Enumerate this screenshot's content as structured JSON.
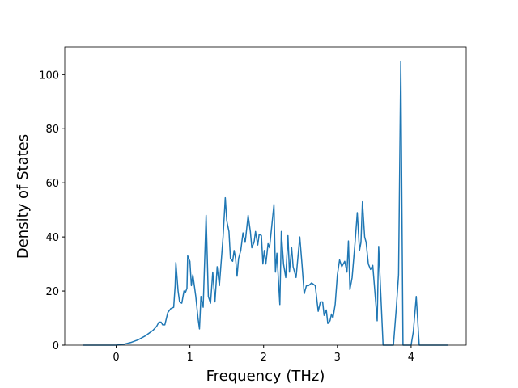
{
  "chart_data": {
    "type": "line",
    "xlabel": "Frequency (THz)",
    "ylabel": "Density of States",
    "x": [
      -0.45,
      -0.2,
      0,
      0.1,
      0.2,
      0.3,
      0.4,
      0.5,
      0.55,
      0.58,
      0.61,
      0.63,
      0.66,
      0.7,
      0.74,
      0.78,
      0.8,
      0.81,
      0.84,
      0.86,
      0.89,
      0.92,
      0.94,
      0.96,
      0.97,
      1.0,
      1.02,
      1.04,
      1.08,
      1.11,
      1.13,
      1.15,
      1.18,
      1.22,
      1.25,
      1.28,
      1.31,
      1.34,
      1.37,
      1.4,
      1.45,
      1.48,
      1.5,
      1.53,
      1.55,
      1.58,
      1.6,
      1.62,
      1.64,
      1.66,
      1.69,
      1.72,
      1.75,
      1.79,
      1.82,
      1.84,
      1.87,
      1.89,
      1.92,
      1.94,
      1.97,
      1.99,
      2.01,
      2.03,
      2.06,
      2.08,
      2.14,
      2.16,
      2.18,
      2.22,
      2.24,
      2.27,
      2.3,
      2.33,
      2.35,
      2.38,
      2.4,
      2.44,
      2.49,
      2.52,
      2.55,
      2.58,
      2.61,
      2.65,
      2.7,
      2.74,
      2.77,
      2.8,
      2.82,
      2.85,
      2.87,
      2.9,
      2.92,
      2.94,
      2.97,
      3.0,
      3.03,
      3.06,
      3.1,
      3.13,
      3.15,
      3.17,
      3.2,
      3.24,
      3.27,
      3.3,
      3.32,
      3.34,
      3.37,
      3.39,
      3.42,
      3.45,
      3.48,
      3.54,
      3.56,
      3.62,
      3.76,
      3.8,
      3.83,
      3.86,
      3.89,
      4.0,
      4.03,
      4.07,
      4.11,
      4.5
    ],
    "series": [
      {
        "name": "DOS",
        "color": "#1f77b4",
        "values": [
          0,
          0,
          0,
          0.3,
          1,
          2,
          3.5,
          5.5,
          7,
          8.5,
          8.5,
          7.5,
          7.5,
          12,
          13.5,
          14,
          22,
          30.5,
          20,
          16,
          15.5,
          20,
          19.5,
          21,
          33,
          31,
          22,
          26,
          18,
          10,
          6,
          18,
          14,
          48,
          18,
          15.5,
          27,
          16,
          29,
          22,
          40,
          54.5,
          46,
          42,
          32,
          31,
          35,
          32,
          25.5,
          32,
          35,
          41.5,
          38,
          48,
          42,
          36,
          38,
          42,
          37,
          41,
          40.5,
          30,
          35,
          30,
          37.5,
          36,
          52,
          27,
          34,
          15,
          42,
          30,
          25,
          40.5,
          27,
          36,
          29,
          25,
          40,
          30,
          19,
          22,
          22,
          23,
          22,
          12.5,
          16,
          16,
          11,
          13,
          8,
          9,
          11.5,
          10,
          15,
          26,
          31.5,
          29,
          31,
          27,
          38.5,
          20.5,
          25,
          38,
          49,
          35,
          38,
          53,
          40,
          38,
          30,
          28,
          29.5,
          9,
          36.5,
          0,
          0,
          14,
          26,
          105,
          0,
          0,
          5,
          18,
          0,
          0
        ]
      }
    ],
    "xlim": [
      -0.6975,
      4.7475
    ],
    "ylim": [
      0,
      110.25
    ],
    "xticks": [
      0,
      1,
      2,
      3,
      4
    ],
    "yticks": [
      0,
      20,
      40,
      60,
      80,
      100
    ],
    "grid": false
  }
}
